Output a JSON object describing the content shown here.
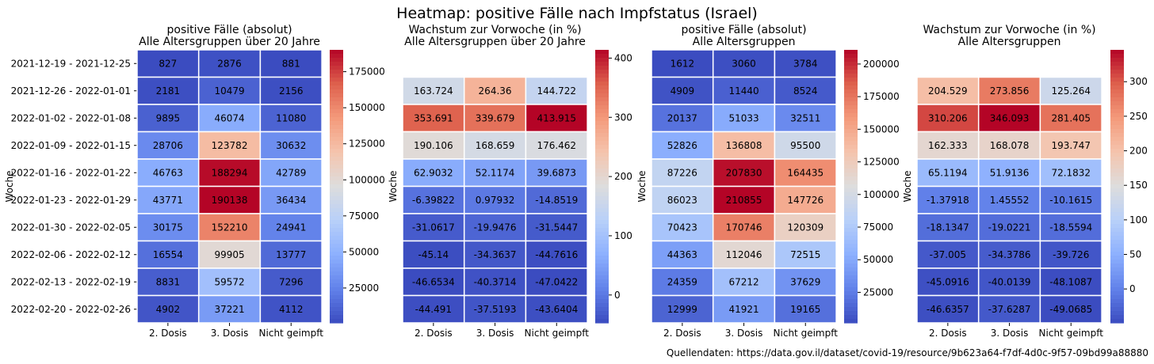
{
  "title": "Heatmap: positive Fälle nach Impfstatus (Israel)",
  "source": "Quellendaten: https://data.gov.il/dataset/covid-19/resource/9b623a64-f7df-4d0c-9f57-09bd99a88880",
  "weeks": [
    "2021-12-19 - 2021-12-25",
    "2021-12-26 - 2022-01-01",
    "2022-01-02 - 2022-01-08",
    "2022-01-09 - 2022-01-15",
    "2022-01-16 - 2022-01-22",
    "2022-01-23 - 2022-01-29",
    "2022-01-30 - 2022-02-05",
    "2022-02-06 - 2022-02-12",
    "2022-02-13 - 2022-02-19",
    "2022-02-20 - 2022-02-26"
  ],
  "chart_data": [
    {
      "type": "heatmap",
      "title": "positive Fälle (absolut)",
      "subtitle": "Alle Altersgruppen über 20 Jahre",
      "ylabel": "Woche",
      "show_ytick_labels": true,
      "colormap": "coolwarm",
      "categories": [
        "2. Dosis",
        "3. Dosis",
        "Nicht geimpft"
      ],
      "range": [
        827,
        190138
      ],
      "colorbar_ticks": [
        25000,
        50000,
        75000,
        100000,
        125000,
        150000,
        175000
      ],
      "values": [
        [
          "827",
          "2876",
          "881"
        ],
        [
          "2181",
          "10479",
          "2156"
        ],
        [
          "9895",
          "46074",
          "11080"
        ],
        [
          "28706",
          "123782",
          "30632"
        ],
        [
          "46763",
          "188294",
          "42789"
        ],
        [
          "43771",
          "190138",
          "36434"
        ],
        [
          "30175",
          "152210",
          "24941"
        ],
        [
          "16554",
          "99905",
          "13777"
        ],
        [
          "8831",
          "59572",
          "7296"
        ],
        [
          "4902",
          "37221",
          "4112"
        ]
      ]
    },
    {
      "type": "heatmap",
      "title": "Wachstum zur Vorwoche (in %)",
      "subtitle": "Alle Altersgruppen über 20 Jahre",
      "ylabel": "Woche",
      "show_ytick_labels": false,
      "colormap": "coolwarm",
      "categories": [
        "2. Dosis",
        "3. Dosis",
        "Nicht geimpft"
      ],
      "range": [
        -47.0422,
        413.915
      ],
      "colorbar_ticks": [
        0,
        100,
        200,
        300,
        400
      ],
      "values": [
        [
          null,
          null,
          null
        ],
        [
          "163.724",
          "264.36",
          "144.722"
        ],
        [
          "353.691",
          "339.679",
          "413.915"
        ],
        [
          "190.106",
          "168.659",
          "176.462"
        ],
        [
          "62.9032",
          "52.1174",
          "39.6873"
        ],
        [
          "-6.39822",
          "0.97932",
          "-14.8519"
        ],
        [
          "-31.0617",
          "-19.9476",
          "-31.5447"
        ],
        [
          "-45.14",
          "-34.3637",
          "-44.7616"
        ],
        [
          "-46.6534",
          "-40.3714",
          "-47.0422"
        ],
        [
          "-44.491",
          "-37.5193",
          "-43.6404"
        ]
      ]
    },
    {
      "type": "heatmap",
      "title": "positive Fälle (absolut)",
      "subtitle": "Alle Altersgruppen",
      "ylabel": "Woche",
      "show_ytick_labels": false,
      "colormap": "coolwarm",
      "categories": [
        "2. Dosis",
        "3. Dosis",
        "Nicht geimpft"
      ],
      "range": [
        1612,
        210855
      ],
      "colorbar_ticks": [
        25000,
        50000,
        75000,
        100000,
        125000,
        150000,
        175000,
        200000
      ],
      "values": [
        [
          "1612",
          "3060",
          "3784"
        ],
        [
          "4909",
          "11440",
          "8524"
        ],
        [
          "20137",
          "51033",
          "32511"
        ],
        [
          "52826",
          "136808",
          "95500"
        ],
        [
          "87226",
          "207830",
          "164435"
        ],
        [
          "86023",
          "210855",
          "147726"
        ],
        [
          "70423",
          "170746",
          "120309"
        ],
        [
          "44363",
          "112046",
          "72515"
        ],
        [
          "24359",
          "67212",
          "37629"
        ],
        [
          "12999",
          "41921",
          "19165"
        ]
      ]
    },
    {
      "type": "heatmap",
      "title": "Wachstum zur Vorwoche (in %)",
      "subtitle": "Alle Altersgruppen",
      "ylabel": "Woche",
      "show_ytick_labels": false,
      "colormap": "coolwarm",
      "categories": [
        "2. Dosis",
        "3. Dosis",
        "Nicht geimpft"
      ],
      "range": [
        -49.0685,
        346.093
      ],
      "colorbar_ticks": [
        0,
        50,
        100,
        150,
        200,
        250,
        300
      ],
      "values": [
        [
          null,
          null,
          null
        ],
        [
          "204.529",
          "273.856",
          "125.264"
        ],
        [
          "310.206",
          "346.093",
          "281.405"
        ],
        [
          "162.333",
          "168.078",
          "193.747"
        ],
        [
          "65.1194",
          "51.9136",
          "72.1832"
        ],
        [
          "-1.37918",
          "1.45552",
          "-10.1615"
        ],
        [
          "-18.1347",
          "-19.0221",
          "-18.5594"
        ],
        [
          "-37.005",
          "-34.3786",
          "-39.726"
        ],
        [
          "-45.0916",
          "-40.0139",
          "-48.1087"
        ],
        [
          "-46.6357",
          "-37.6287",
          "-49.0685"
        ]
      ]
    }
  ]
}
